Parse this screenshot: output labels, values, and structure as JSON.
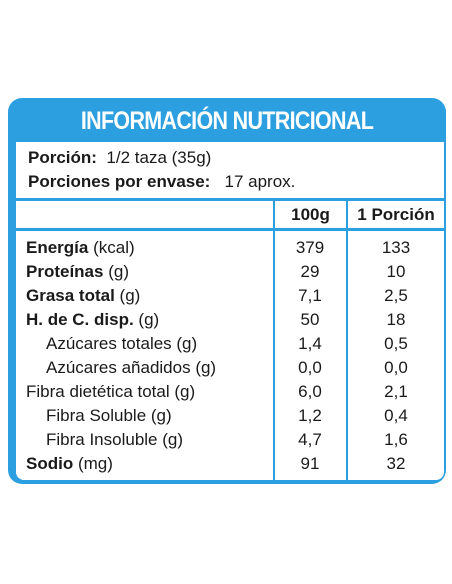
{
  "title": "INFORMACIÓN NUTRICIONAL",
  "serving": {
    "portion_label": "Porción:",
    "portion_value": "1/2 taza (35g)",
    "per_pack_label": "Porciones por envase:",
    "per_pack_value": "17 aprox."
  },
  "columns": [
    "100g",
    "1 Porción"
  ],
  "rows": [
    {
      "name": "Energía",
      "unit": " (kcal)",
      "bold": true,
      "sub": false,
      "v100": "379",
      "vp": "133"
    },
    {
      "name": "Proteínas",
      "unit": " (g)",
      "bold": true,
      "sub": false,
      "v100": "29",
      "vp": "10"
    },
    {
      "name": "Grasa total",
      "unit": " (g)",
      "bold": true,
      "sub": false,
      "v100": "7,1",
      "vp": "2,5"
    },
    {
      "name": "H. de C. disp.",
      "unit": " (g)",
      "bold": true,
      "sub": false,
      "v100": "50",
      "vp": "18"
    },
    {
      "name": "Azúcares totales (g)",
      "unit": "",
      "bold": false,
      "sub": true,
      "v100": "1,4",
      "vp": "0,5"
    },
    {
      "name": "Azúcares añadidos (g)",
      "unit": "",
      "bold": false,
      "sub": true,
      "v100": "0,0",
      "vp": "0,0"
    },
    {
      "name": "Fibra dietética total (g)",
      "unit": "",
      "bold": false,
      "sub": false,
      "v100": "6,0",
      "vp": "2,1"
    },
    {
      "name": "Fibra Soluble (g)",
      "unit": "",
      "bold": false,
      "sub": true,
      "v100": "1,2",
      "vp": "0,4"
    },
    {
      "name": "Fibra Insoluble (g)",
      "unit": "",
      "bold": false,
      "sub": true,
      "v100": "4,7",
      "vp": "1,6"
    },
    {
      "name": "Sodio",
      "unit": " (mg)",
      "bold": true,
      "sub": false,
      "v100": "91",
      "vp": "32"
    }
  ],
  "colors": {
    "accent": "#2b9fe0",
    "title_text": "#ffffff"
  }
}
